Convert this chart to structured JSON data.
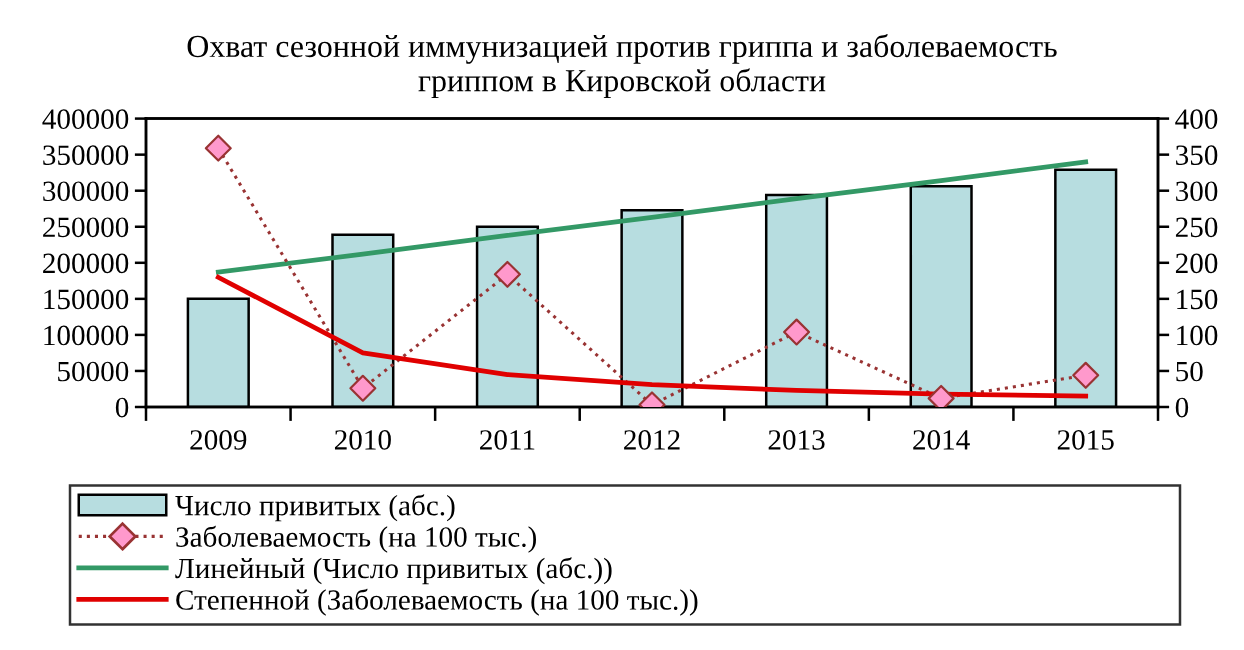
{
  "chart_data": {
    "type": "bar",
    "title": "Охват сезонной иммунизацией против гриппа и заболеваемость\nгриппом в Кировской области",
    "categories": [
      "2009",
      "2010",
      "2011",
      "2012",
      "2013",
      "2014",
      "2015"
    ],
    "series": [
      {
        "name": "Число привитых (абс.)",
        "color": "#b7dde0",
        "values": [
          150000,
          239000,
          250000,
          273000,
          294000,
          306000,
          329000
        ]
      },
      {
        "name": "Заболеваемость (на 100 тыс.)",
        "type": "line",
        "axis": "y2",
        "color": "#993333",
        "colors": [
          "#ff99cc",
          "#ff99cc",
          "#ff99cc",
          "#ff99cc",
          "#ff99cc",
          "#ff99cc",
          "#ff99cc"
        ],
        "marker": "diamond",
        "line_style": "dotted",
        "values": [
          359,
          26,
          184,
          3,
          104,
          12,
          44
        ]
      },
      {
        "name": "Линейный (Число привитых (абс.))",
        "type": "line",
        "color": "#339966",
        "marker": "none",
        "line_style": "solid",
        "values": [
          187000,
          212000,
          238000,
          263000,
          289000,
          314000,
          340000
        ]
      },
      {
        "name": "Степенной (Заболеваемость (на 100 тыс.))",
        "type": "line",
        "axis": "y2",
        "color": "#e00000",
        "marker": "none",
        "line_style": "solid",
        "values": [
          180,
          75,
          45,
          31,
          23,
          18,
          15
        ]
      }
    ],
    "ylim": [
      0,
      400000
    ],
    "yticks": [
      0,
      50000,
      100000,
      150000,
      200000,
      250000,
      300000,
      350000,
      400000
    ],
    "y2lim": [
      0,
      400
    ],
    "y2ticks": [
      0,
      50,
      100,
      150,
      200,
      250,
      300,
      350,
      400
    ],
    "legend": "bottom"
  }
}
